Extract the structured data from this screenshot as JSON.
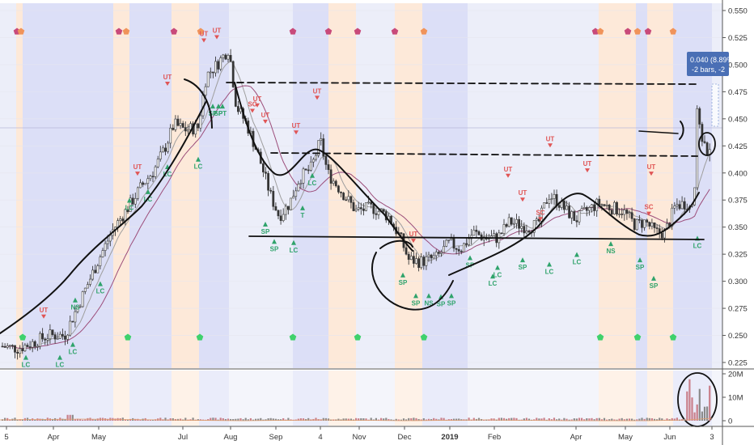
{
  "chart_data": {
    "type": "candlestick",
    "y_ticks": [
      "0.550",
      "0.525",
      "0.500",
      "0.475",
      "0.450",
      "0.425",
      "0.400",
      "0.375",
      "0.350",
      "0.325",
      "0.300",
      "0.275",
      "0.250",
      "0.225"
    ],
    "ylim": [
      0.22,
      0.557
    ],
    "volume_ticks": [
      "20M",
      "10M",
      "0"
    ],
    "volume_lim": [
      0,
      20000000
    ],
    "x_ticks": [
      "5",
      "Apr",
      "May",
      "Jul",
      "Aug",
      "Sep",
      "4",
      "Nov",
      "Dec",
      "2019",
      "Feb",
      "Apr",
      "May",
      "Jun",
      "3"
    ],
    "x_tick_pos": [
      8,
      66,
      122,
      226,
      285,
      341,
      396,
      444,
      500,
      556,
      611,
      712,
      773,
      828,
      880
    ],
    "last_price_badge": {
      "line1": "0.040 (8.89%",
      "line2": "-2 bars, -2"
    },
    "colors": {
      "up": "#26a69a",
      "down": "#ef5350",
      "ma_fast": "#9e9e9e",
      "ma_slow": "#9c4d7a",
      "bg_blue": "#dcdff7",
      "bg_orange": "#fde9d9",
      "ut_marker": "#e05555",
      "sc_marker": "#2fa36b"
    },
    "price_axis_min": 0.225,
    "price_axis_max": 0.55,
    "signals": {
      "UT": [
        {
          "x": 207,
          "y": 0.485
        },
        {
          "x": 252,
          "y": 0.525
        },
        {
          "x": 268,
          "y": 0.528
        },
        {
          "x": 170,
          "y": 0.402
        },
        {
          "x": 366,
          "y": 0.44
        },
        {
          "x": 392,
          "y": 0.472
        },
        {
          "x": 328,
          "y": 0.45
        },
        {
          "x": 511,
          "y": 0.34
        },
        {
          "x": 628,
          "y": 0.4
        },
        {
          "x": 646,
          "y": 0.378
        },
        {
          "x": 680,
          "y": 0.428
        },
        {
          "x": 726,
          "y": 0.405
        },
        {
          "x": 805,
          "y": 0.402
        },
        {
          "x": 318,
          "y": 0.465
        },
        {
          "x": 54,
          "y": 0.27
        }
      ],
      "SC": [
        {
          "x": 668,
          "y": 0.36
        },
        {
          "x": 802,
          "y": 0.365
        },
        {
          "x": 312,
          "y": 0.46
        }
      ],
      "LC": [
        {
          "x": 32,
          "y": 0.232
        },
        {
          "x": 74,
          "y": 0.232
        },
        {
          "x": 90,
          "y": 0.244
        },
        {
          "x": 160,
          "y": 0.377
        },
        {
          "x": 183,
          "y": 0.385
        },
        {
          "x": 207,
          "y": 0.408
        },
        {
          "x": 245,
          "y": 0.415
        },
        {
          "x": 386,
          "y": 0.4
        },
        {
          "x": 363,
          "y": 0.338
        },
        {
          "x": 609,
          "y": 0.307
        },
        {
          "x": 615,
          "y": 0.315
        },
        {
          "x": 679,
          "y": 0.318
        },
        {
          "x": 713,
          "y": 0.327
        },
        {
          "x": 862,
          "y": 0.342
        },
        {
          "x": 124,
          "y": 0.3
        }
      ],
      "SP": [
        {
          "x": 328,
          "y": 0.355
        },
        {
          "x": 339,
          "y": 0.339
        },
        {
          "x": 498,
          "y": 0.308
        },
        {
          "x": 514,
          "y": 0.289
        },
        {
          "x": 545,
          "y": 0.288
        },
        {
          "x": 558,
          "y": 0.289
        },
        {
          "x": 581,
          "y": 0.324
        },
        {
          "x": 646,
          "y": 0.322
        },
        {
          "x": 791,
          "y": 0.322
        },
        {
          "x": 808,
          "y": 0.305
        },
        {
          "x": 263,
          "y": 0.464
        },
        {
          "x": 270,
          "y": 0.464
        }
      ],
      "NS": [
        {
          "x": 93,
          "y": 0.285
        },
        {
          "x": 755,
          "y": 0.337
        },
        {
          "x": 530,
          "y": 0.289
        }
      ],
      "T": [
        {
          "x": 374,
          "y": 0.37
        }
      ],
      "PT": [
        {
          "x": 275,
          "y": 0.464
        }
      ]
    }
  }
}
